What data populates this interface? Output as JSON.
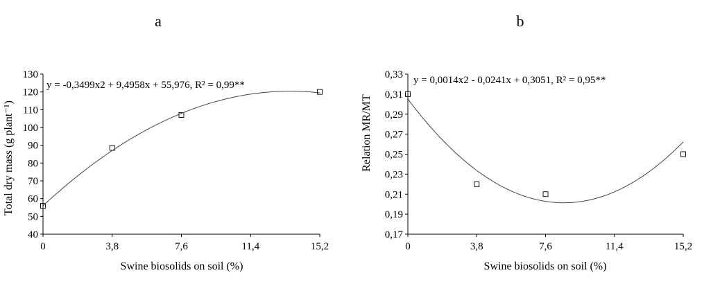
{
  "chart_data": [
    {
      "type": "scatter",
      "panel_label": "a",
      "x": [
        0,
        3.8,
        7.6,
        15.2
      ],
      "y": [
        56,
        88.5,
        107,
        120
      ],
      "x_ticks": [
        "0",
        "3,8",
        "7,6",
        "11,4",
        "15,2"
      ],
      "x_tick_values": [
        0,
        3.8,
        7.6,
        11.4,
        15.2
      ],
      "y_ticks": [
        "40",
        "50",
        "60",
        "70",
        "80",
        "90",
        "100",
        "110",
        "120",
        "130"
      ],
      "y_tick_values": [
        40,
        50,
        60,
        70,
        80,
        90,
        100,
        110,
        120,
        130
      ],
      "xlim": [
        0,
        15.2
      ],
      "ylim": [
        40,
        130
      ],
      "xlabel": "Swine biosolids on soil (%)",
      "ylabel": "Total dry mass (g plant⁻¹)",
      "equation": "y = -0,3499x2 + 9,4958x + 55,976, R² = 0,99**",
      "fit": {
        "a": -0.3499,
        "b": 9.4958,
        "c": 55.976
      },
      "grid": false
    },
    {
      "type": "scatter",
      "panel_label": "b",
      "x": [
        0,
        3.8,
        7.6,
        15.2
      ],
      "y": [
        0.31,
        0.22,
        0.21,
        0.25
      ],
      "x_ticks": [
        "0",
        "3,8",
        "7,6",
        "11,4",
        "15,2"
      ],
      "x_tick_values": [
        0,
        3.8,
        7.6,
        11.4,
        15.2
      ],
      "y_ticks": [
        "0,17",
        "0,19",
        "0,21",
        "0,23",
        "0,25",
        "0,27",
        "0,29",
        "0,31",
        "0,33"
      ],
      "y_tick_values": [
        0.17,
        0.19,
        0.21,
        0.23,
        0.25,
        0.27,
        0.29,
        0.31,
        0.33
      ],
      "xlim": [
        0,
        15.2
      ],
      "ylim": [
        0.17,
        0.33
      ],
      "xlabel": "Swine biosolids on soil (%)",
      "ylabel": "Relation MR/MT",
      "equation": "y = 0,0014x2 - 0,0241x + 0,3051, R² = 0,95**",
      "fit": {
        "a": 0.0014,
        "b": -0.0241,
        "c": 0.3051
      },
      "grid": false
    }
  ]
}
